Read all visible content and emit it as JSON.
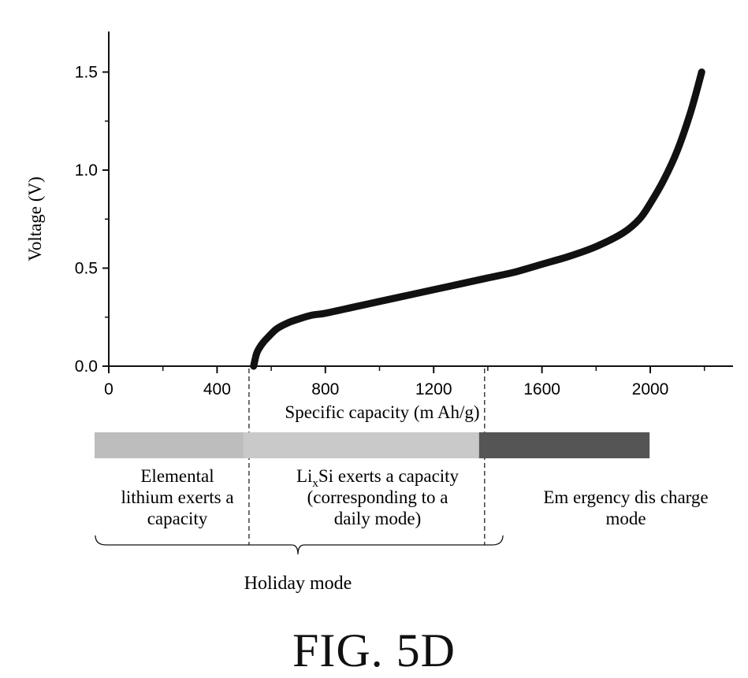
{
  "chart_data": {
    "type": "line",
    "xlabel": "Specific capacity (m Ah/g)",
    "ylabel": "Voltage (V)",
    "xlim": [
      0,
      2300
    ],
    "ylim": [
      0,
      1.7
    ],
    "xticks": [
      0,
      400,
      800,
      1200,
      1600,
      2000
    ],
    "yticks": [
      0.0,
      0.5,
      1.0,
      1.5
    ],
    "xtick_labels": [
      "0",
      "400",
      "800",
      "1200",
      "1600",
      "2000"
    ],
    "ytick_labels": [
      "0.0",
      "0.5",
      "1.0",
      "1.5"
    ],
    "grid": false,
    "series": [
      {
        "x": [
          535,
          545,
          555,
          570,
          590,
          620,
          660,
          700,
          750,
          800,
          900,
          1000,
          1100,
          1200,
          1300,
          1400,
          1500,
          1600,
          1700,
          1800,
          1900,
          1960,
          2000,
          2050,
          2100,
          2150,
          2190
        ],
        "y": [
          0.0,
          0.06,
          0.09,
          0.12,
          0.15,
          0.19,
          0.22,
          0.24,
          0.26,
          0.27,
          0.3,
          0.33,
          0.36,
          0.39,
          0.42,
          0.45,
          0.48,
          0.52,
          0.56,
          0.61,
          0.68,
          0.75,
          0.83,
          0.95,
          1.1,
          1.3,
          1.5
        ]
      }
    ],
    "boundaries": [
      550,
      1420
    ]
  },
  "regions": [
    {
      "id": "elemental",
      "x_start": 0,
      "x_end": 550,
      "color": "#bdbdbd",
      "label_lines": [
        "Elemental",
        "lithium exerts a",
        "capacity"
      ]
    },
    {
      "id": "lixsi",
      "x_start": 550,
      "x_end": 1420,
      "color": "#c9c9c9",
      "label_prefix": "Li",
      "label_sub": "x",
      "label_suffix": "Si exerts a capacity",
      "label_lines_rest": [
        "(corresponding to a",
        "daily mode)"
      ]
    },
    {
      "id": "emergency",
      "x_start": 1420,
      "x_end": 2050,
      "color": "#555555",
      "label_lines": [
        "Em ergency dis charge",
        "mode"
      ]
    }
  ],
  "holiday_label": "Holiday mode",
  "figure_caption": "FIG. 5D"
}
